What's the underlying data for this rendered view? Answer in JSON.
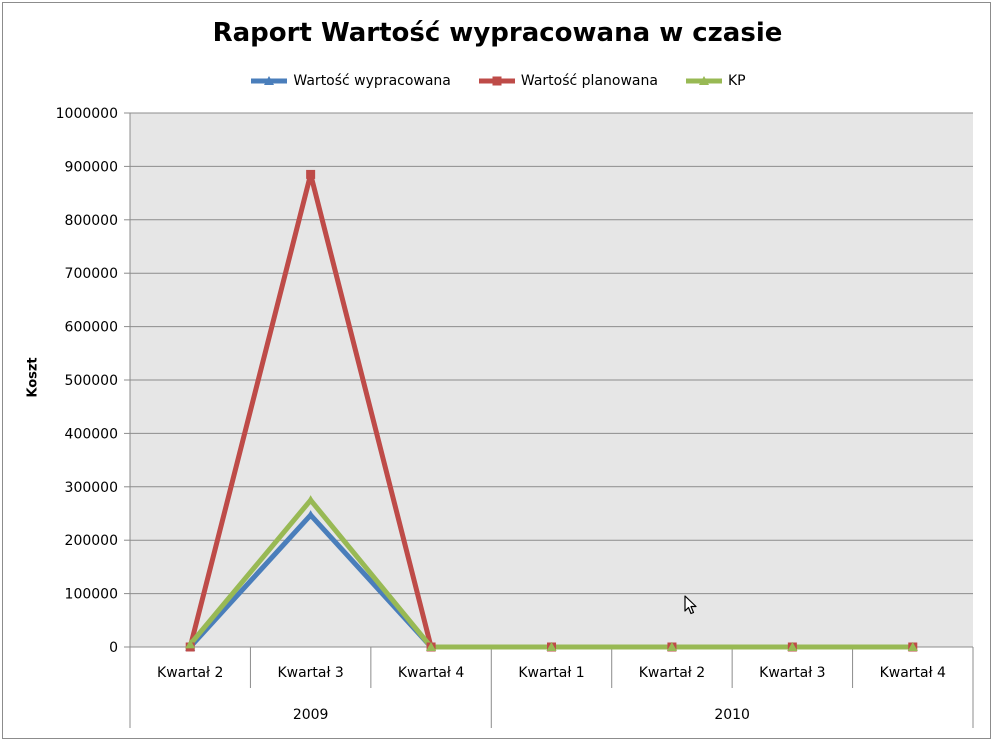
{
  "chart_data": {
    "type": "line",
    "title": "Raport Wartość wypracowana w czasie",
    "xlabel": "",
    "ylabel": "Koszt",
    "ylim": [
      0,
      1000000
    ],
    "y_ticks": [
      0,
      100000,
      200000,
      300000,
      400000,
      500000,
      600000,
      700000,
      800000,
      900000,
      1000000
    ],
    "categories": [
      "Kwartał 2",
      "Kwartał 3",
      "Kwartał 4",
      "Kwartał 1",
      "Kwartał 2",
      "Kwartał 3",
      "Kwartał 4"
    ],
    "category_groups": [
      {
        "label": "2009",
        "span": 3
      },
      {
        "label": "2010",
        "span": 4
      }
    ],
    "grid": true,
    "legend_position": "top",
    "series": [
      {
        "name": "Wartość wypracowana",
        "color": "#4a7ebb",
        "marker": "triangle",
        "values": [
          0,
          247000,
          0,
          0,
          0,
          0,
          0
        ]
      },
      {
        "name": "Wartość planowana",
        "color": "#be4b48",
        "marker": "square",
        "values": [
          0,
          885000,
          0,
          0,
          0,
          0,
          0
        ]
      },
      {
        "name": "KP",
        "color": "#98b954",
        "marker": "triangle",
        "values": [
          5000,
          275000,
          0,
          0,
          0,
          0,
          0
        ]
      }
    ]
  },
  "colors": {
    "plot_background": "#e6e6e6",
    "gridline": "#8c8c8c",
    "axis": "#8c8c8c"
  },
  "icons": {
    "cursor": "mouse-pointer-icon"
  }
}
